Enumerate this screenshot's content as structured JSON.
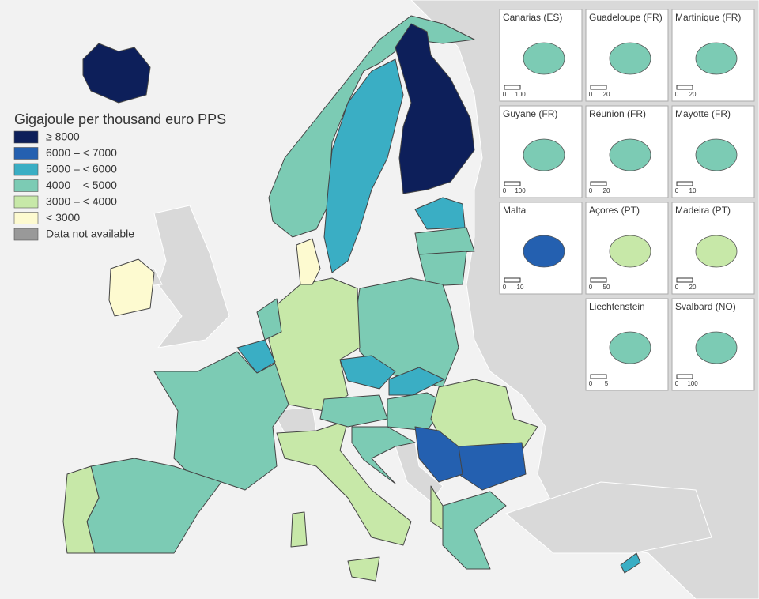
{
  "legend": {
    "title": "Gigajoule per thousand euro PPS",
    "items": [
      {
        "label": "≥ 8000",
        "color": "#0d1f5a"
      },
      {
        "label": "6000 – < 7000",
        "color": "#2460b0"
      },
      {
        "label": "5000 – < 6000",
        "color": "#3aaec4"
      },
      {
        "label": "4000 – < 5000",
        "color": "#7ccbb4"
      },
      {
        "label": "3000 – < 4000",
        "color": "#c7e8a8"
      },
      {
        "label": "< 3000",
        "color": "#fdfad0"
      },
      {
        "label": "Data not available",
        "color": "#999999"
      }
    ]
  },
  "insets": [
    {
      "label": "Canarias (ES)",
      "scale": [
        0,
        100
      ],
      "color": "#7ccbb4"
    },
    {
      "label": "Guadeloupe (FR)",
      "scale": [
        0,
        20
      ],
      "color": "#7ccbb4"
    },
    {
      "label": "Martinique (FR)",
      "scale": [
        0,
        20
      ],
      "color": "#7ccbb4"
    },
    {
      "label": "Guyane (FR)",
      "scale": [
        0,
        100
      ],
      "color": "#7ccbb4"
    },
    {
      "label": "Réunion (FR)",
      "scale": [
        0,
        20
      ],
      "color": "#7ccbb4"
    },
    {
      "label": "Mayotte (FR)",
      "scale": [
        0,
        10
      ],
      "color": "#7ccbb4"
    },
    {
      "label": "Malta",
      "scale": [
        0,
        10
      ],
      "color": "#2460b0"
    },
    {
      "label": "Açores (PT)",
      "scale": [
        0,
        50
      ],
      "color": "#c7e8a8"
    },
    {
      "label": "Madeira (PT)",
      "scale": [
        0,
        20
      ],
      "color": "#c7e8a8"
    },
    {
      "label": "Liechtenstein",
      "scale": [
        0,
        5
      ],
      "color": "#7ccbb4"
    },
    {
      "label": "Svalbard (NO)",
      "scale": [
        0,
        100
      ],
      "color": "#7ccbb4"
    }
  ]
}
